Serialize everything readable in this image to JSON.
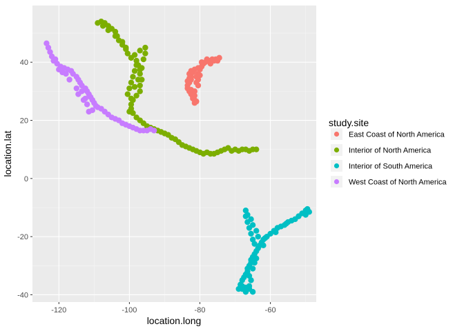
{
  "chart_data": {
    "type": "scatter",
    "title": "",
    "xlabel": "location.long",
    "ylabel": "location.lat",
    "xlim": [
      -127.5,
      -47
    ],
    "ylim": [
      -42.5,
      59.5
    ],
    "xticks": [
      -120,
      -100,
      -80,
      -60
    ],
    "yticks": [
      -40,
      -20,
      0,
      20,
      40
    ],
    "xtick_labels": [
      "-120",
      "-100",
      "-80",
      "-60"
    ],
    "ytick_labels": [
      "-40",
      "-20",
      "0",
      "20",
      "40"
    ],
    "grid": true,
    "panel_background": "#EBEBEB",
    "legend": {
      "title": "study.site",
      "placement": "right"
    },
    "series": [
      {
        "name": "East Coast of North America",
        "color": "#F8766D",
        "points": [
          [
            -81.5,
            26
          ],
          [
            -81.5,
            27
          ],
          [
            -82,
            28
          ],
          [
            -82.5,
            29
          ],
          [
            -83,
            30
          ],
          [
            -83.5,
            31
          ],
          [
            -83.5,
            32
          ],
          [
            -83,
            33
          ],
          [
            -82.5,
            34
          ],
          [
            -82.5,
            35
          ],
          [
            -83,
            36
          ],
          [
            -82.5,
            37
          ],
          [
            -81.5,
            37.5
          ],
          [
            -80.5,
            38
          ],
          [
            -79.5,
            38.5
          ],
          [
            -79,
            39.5
          ],
          [
            -78.5,
            40
          ],
          [
            -77.5,
            40.5
          ],
          [
            -76.5,
            41
          ],
          [
            -75.5,
            41
          ],
          [
            -74.5,
            41.5
          ],
          [
            -81,
            26.5
          ],
          [
            -82,
            27.5
          ],
          [
            -82.5,
            30.5
          ],
          [
            -83.5,
            33.5
          ],
          [
            -82,
            36.5
          ],
          [
            -80,
            37.5
          ],
          [
            -79.5,
            40
          ],
          [
            -77,
            39.5
          ],
          [
            -76,
            40.5
          ],
          [
            -80.5,
            34
          ],
          [
            -80.5,
            32
          ],
          [
            -81.5,
            30
          ],
          [
            -81.5,
            28.5
          ],
          [
            -80.5,
            36
          ],
          [
            -81,
            35
          ],
          [
            -78,
            41
          ],
          [
            -75,
            40.5
          ],
          [
            -80,
            35.5
          ],
          [
            -81,
            33
          ],
          [
            -83,
            34.5
          ]
        ]
      },
      {
        "name": "Interior of North America",
        "color": "#7CAE00",
        "points": [
          [
            -109,
            53.5
          ],
          [
            -108,
            54
          ],
          [
            -107,
            53.5
          ],
          [
            -106,
            52.5
          ],
          [
            -105,
            51.5
          ],
          [
            -104,
            50.5
          ],
          [
            -103.5,
            49
          ],
          [
            -103,
            47.5
          ],
          [
            -102,
            46
          ],
          [
            -101,
            44.5
          ],
          [
            -100.5,
            43
          ],
          [
            -99.5,
            41.5
          ],
          [
            -98,
            40.5
          ],
          [
            -97.5,
            39
          ],
          [
            -97,
            37.5
          ],
          [
            -97,
            36
          ],
          [
            -96.5,
            34
          ],
          [
            -97,
            32
          ],
          [
            -97,
            30
          ],
          [
            -98,
            28.5
          ],
          [
            -99,
            27
          ],
          [
            -99.5,
            25.5
          ],
          [
            -99.5,
            24
          ],
          [
            -99,
            22.5
          ],
          [
            -98,
            21
          ],
          [
            -97,
            20
          ],
          [
            -96,
            19
          ],
          [
            -95,
            18
          ],
          [
            -94,
            17.5
          ],
          [
            -93,
            17
          ],
          [
            -92,
            16.5
          ],
          [
            -91,
            16
          ],
          [
            -90,
            15.5
          ],
          [
            -89,
            15
          ],
          [
            -88,
            14
          ],
          [
            -87,
            13.5
          ],
          [
            -86,
            12.5
          ],
          [
            -85,
            11.5
          ],
          [
            -84,
            11
          ],
          [
            -83,
            10.5
          ],
          [
            -82,
            10
          ],
          [
            -81,
            9.5
          ],
          [
            -80,
            9
          ],
          [
            -79,
            8.5
          ],
          [
            -78,
            9
          ],
          [
            -77,
            8.5
          ],
          [
            -76,
            8.5
          ],
          [
            -75,
            9
          ],
          [
            -74,
            9.5
          ],
          [
            -73,
            10
          ],
          [
            -72,
            10.5
          ],
          [
            -71,
            9.5
          ],
          [
            -70,
            10
          ],
          [
            -69,
            9.5
          ],
          [
            -68,
            10
          ],
          [
            -67,
            10
          ],
          [
            -66,
            9.5
          ],
          [
            -65,
            10
          ],
          [
            -64,
            10
          ],
          [
            -100.5,
            29
          ],
          [
            -100,
            31
          ],
          [
            -99.5,
            33
          ],
          [
            -99,
            35
          ],
          [
            -98.5,
            37
          ],
          [
            -98,
            39
          ],
          [
            -96,
            41
          ],
          [
            -95.5,
            43
          ],
          [
            -95.5,
            45
          ],
          [
            -96.5,
            38
          ],
          [
            -97.5,
            34
          ],
          [
            -98.5,
            31.5
          ],
          [
            -99.5,
            27.5
          ],
          [
            -100,
            23
          ],
          [
            -101,
            45
          ],
          [
            -102,
            47
          ],
          [
            -104,
            49
          ],
          [
            -106,
            51
          ],
          [
            -107.5,
            52.5
          ],
          [
            -98.5,
            42.5
          ],
          [
            -97,
            44
          ]
        ]
      },
      {
        "name": "Interior of South America",
        "color": "#00BFC4",
        "points": [
          [
            -65,
            -39
          ],
          [
            -66,
            -38
          ],
          [
            -67,
            -37.5
          ],
          [
            -68,
            -38
          ],
          [
            -69,
            -38
          ],
          [
            -68.5,
            -36.5
          ],
          [
            -68,
            -35
          ],
          [
            -67.5,
            -34
          ],
          [
            -67,
            -33
          ],
          [
            -66.5,
            -32
          ],
          [
            -66.5,
            -31
          ],
          [
            -66,
            -30
          ],
          [
            -65.5,
            -29
          ],
          [
            -65.5,
            -28
          ],
          [
            -65,
            -27
          ],
          [
            -64.5,
            -26
          ],
          [
            -64,
            -25
          ],
          [
            -63.5,
            -24
          ],
          [
            -63,
            -23
          ],
          [
            -62.5,
            -22
          ],
          [
            -62,
            -21
          ],
          [
            -61.5,
            -20.5
          ],
          [
            -61,
            -20
          ],
          [
            -60,
            -19
          ],
          [
            -59,
            -18
          ],
          [
            -58,
            -17
          ],
          [
            -57,
            -16.5
          ],
          [
            -56,
            -16
          ],
          [
            -55,
            -15
          ],
          [
            -54,
            -14.5
          ],
          [
            -53,
            -14
          ],
          [
            -52,
            -13
          ],
          [
            -51,
            -12
          ],
          [
            -50,
            -11
          ],
          [
            -49.5,
            -10.5
          ],
          [
            -49,
            -11.5
          ],
          [
            -50,
            -12.5
          ],
          [
            -64.5,
            -22.5
          ],
          [
            -65,
            -21
          ],
          [
            -65.5,
            -19
          ],
          [
            -66,
            -17
          ],
          [
            -66.5,
            -15
          ],
          [
            -67,
            -13
          ],
          [
            -67,
            -11
          ],
          [
            -66.5,
            -12.5
          ],
          [
            -65.5,
            -14
          ],
          [
            -65,
            -16
          ],
          [
            -64,
            -18
          ],
          [
            -63.5,
            -20
          ],
          [
            -66,
            -37
          ],
          [
            -65.5,
            -35
          ],
          [
            -66,
            -33.5
          ],
          [
            -65,
            -31
          ],
          [
            -64.5,
            -29
          ],
          [
            -64,
            -27.5
          ],
          [
            -62,
            -23
          ],
          [
            -58.5,
            -18.5
          ],
          [
            -55.5,
            -15.5
          ],
          [
            -67,
            -39
          ],
          [
            -68,
            -37
          ]
        ]
      },
      {
        "name": "West Coast of North America",
        "color": "#C77CFF",
        "points": [
          [
            -123.5,
            46.5
          ],
          [
            -123,
            45
          ],
          [
            -122.5,
            43.5
          ],
          [
            -122,
            42
          ],
          [
            -121.5,
            40.5
          ],
          [
            -120.5,
            39.5
          ],
          [
            -119.5,
            38.5
          ],
          [
            -118.5,
            38
          ],
          [
            -117.5,
            37.5
          ],
          [
            -116.5,
            37
          ],
          [
            -116,
            36
          ],
          [
            -115,
            35
          ],
          [
            -114.5,
            34
          ],
          [
            -114,
            33
          ],
          [
            -113.5,
            32
          ],
          [
            -112.5,
            31
          ],
          [
            -112,
            30
          ],
          [
            -111.5,
            29
          ],
          [
            -111,
            28
          ],
          [
            -110.5,
            27
          ],
          [
            -110,
            26
          ],
          [
            -109.5,
            25
          ],
          [
            -109,
            24.5
          ],
          [
            -108,
            24
          ],
          [
            -107,
            23
          ],
          [
            -106,
            22
          ],
          [
            -105,
            21
          ],
          [
            -104,
            20.5
          ],
          [
            -103,
            20
          ],
          [
            -102,
            19
          ],
          [
            -101,
            18.5
          ],
          [
            -100,
            18
          ],
          [
            -99,
            17.5
          ],
          [
            -98,
            17
          ],
          [
            -97,
            16.5
          ],
          [
            -96,
            16.5
          ],
          [
            -95,
            16.5
          ],
          [
            -94,
            17
          ],
          [
            -93,
            16.5
          ],
          [
            -115,
            31
          ],
          [
            -114.5,
            29
          ],
          [
            -113,
            27
          ],
          [
            -112,
            25.5
          ],
          [
            -111.5,
            23
          ],
          [
            -117,
            34
          ],
          [
            -118,
            36
          ],
          [
            -120,
            37.5
          ],
          [
            -119,
            36.5
          ],
          [
            -121,
            41
          ],
          [
            -110.5,
            23.5
          ],
          [
            -112.5,
            27.5
          ],
          [
            -113.5,
            30
          ]
        ]
      }
    ]
  }
}
